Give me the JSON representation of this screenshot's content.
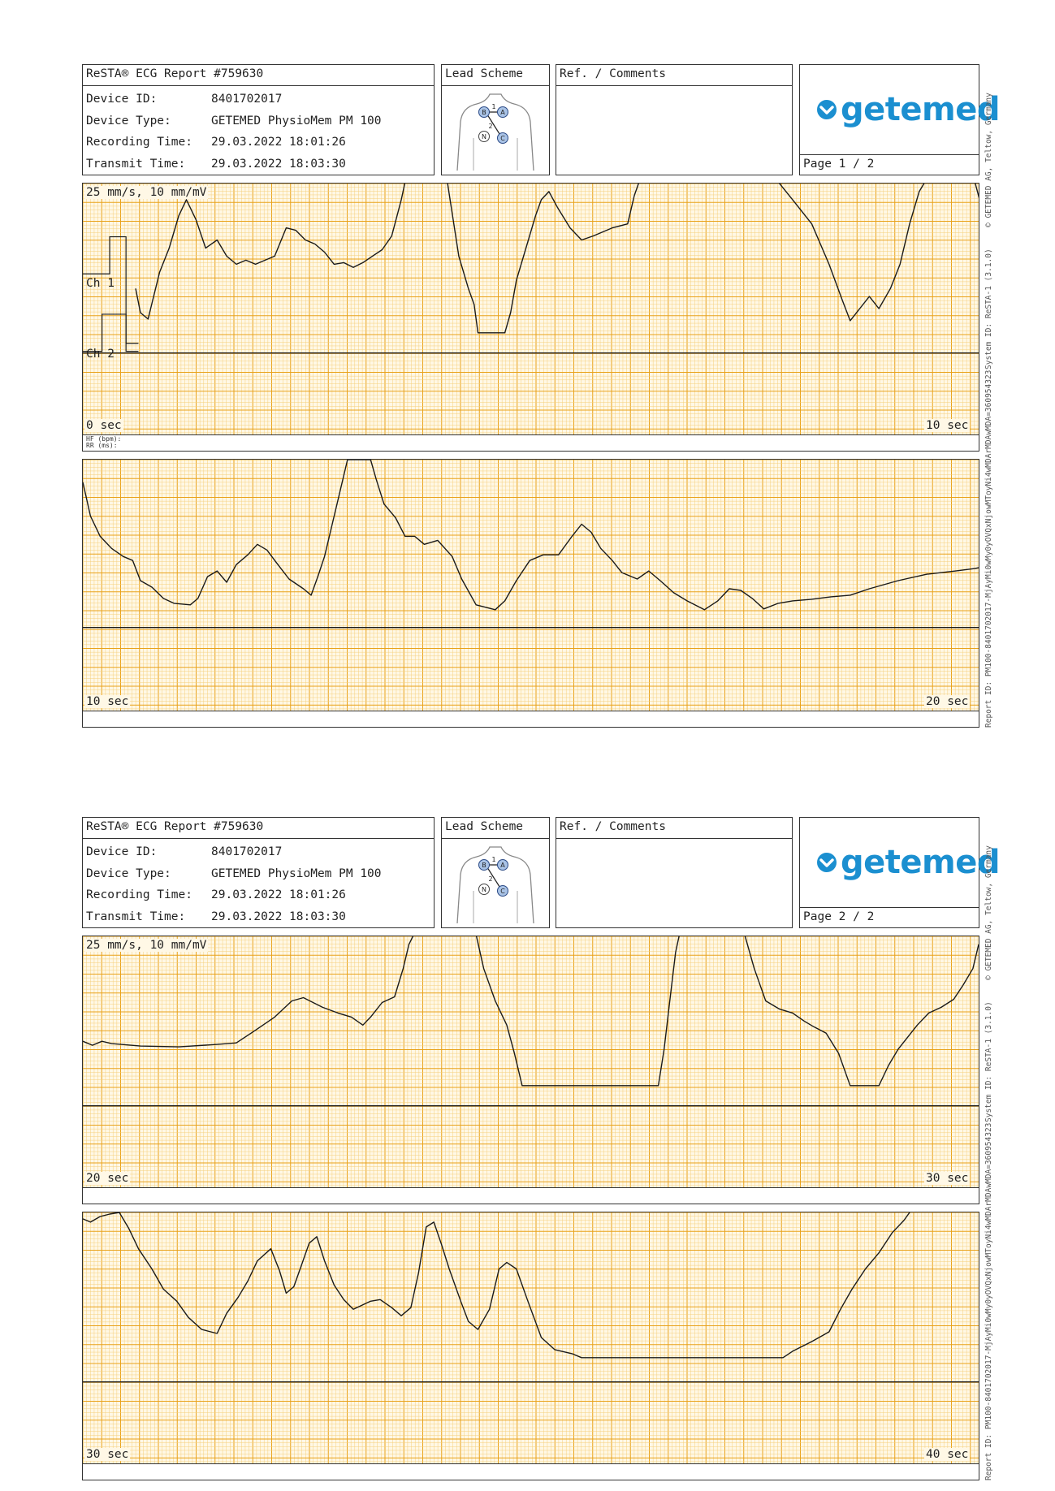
{
  "pages": [
    {
      "report_title": "ReSTA® ECG Report #759630",
      "device_id_label": "Device ID:",
      "device_id": "8401702017",
      "device_type_label": "Device Type:",
      "device_type": "GETEMED PhysioMem PM 100",
      "recording_time_label": "Recording Time:",
      "recording_time": "29.03.2022 18:01:26",
      "transmit_time_label": "Transmit Time:",
      "transmit_time": "29.03.2022 18:03:30",
      "lead_scheme_label": "Lead Scheme",
      "comments_label": "Ref. / Comments",
      "brand": "getemed",
      "page_label": "Page 1 / 2",
      "scale_label": "25 mm/s, 10 mm/mV",
      "ch1_label": "Ch 1",
      "ch2_label": "Ch 2",
      "hf_label": "HF (bpm):",
      "rr_label": "RR (ms):",
      "strip1_start": "0 sec",
      "strip1_end": "10 sec",
      "strip2_start": "10 sec",
      "strip2_end": "20 sec"
    },
    {
      "report_title": "ReSTA® ECG Report #759630",
      "device_id_label": "Device ID:",
      "device_id": "8401702017",
      "device_type_label": "Device Type:",
      "device_type": "GETEMED PhysioMem PM 100",
      "recording_time_label": "Recording Time:",
      "recording_time": "29.03.2022 18:01:26",
      "transmit_time_label": "Transmit Time:",
      "transmit_time": "29.03.2022 18:03:30",
      "lead_scheme_label": "Lead Scheme",
      "comments_label": "Ref. / Comments",
      "brand": "getemed",
      "page_label": "Page 2 / 2",
      "scale_label": "25 mm/s, 10 mm/mV",
      "strip1_start": "20 sec",
      "strip1_end": "30 sec",
      "strip2_start": "30 sec",
      "strip2_end": "40 sec"
    }
  ],
  "electrodes": {
    "b": "B",
    "a": "A",
    "n": "N",
    "c": "C",
    "lead1": "1",
    "lead2": "2"
  },
  "side_text_top": "© GETEMED AG, Teltow, Germany",
  "side_text_mid": "System ID: ReSTA-1 (3.1.0)",
  "side_text_bottom": "Report ID: PM100-8401702017-MjAyMi0wMy0yOVQxNjowMToyNi4wMDArMDAwMDA=360954323",
  "colors": {
    "grid_minor": "#f6cf7c",
    "grid_major": "#e9a21a",
    "paper": "#fff8e6",
    "trace": "#1a1a1a",
    "brand": "#1b8fd0"
  }
}
